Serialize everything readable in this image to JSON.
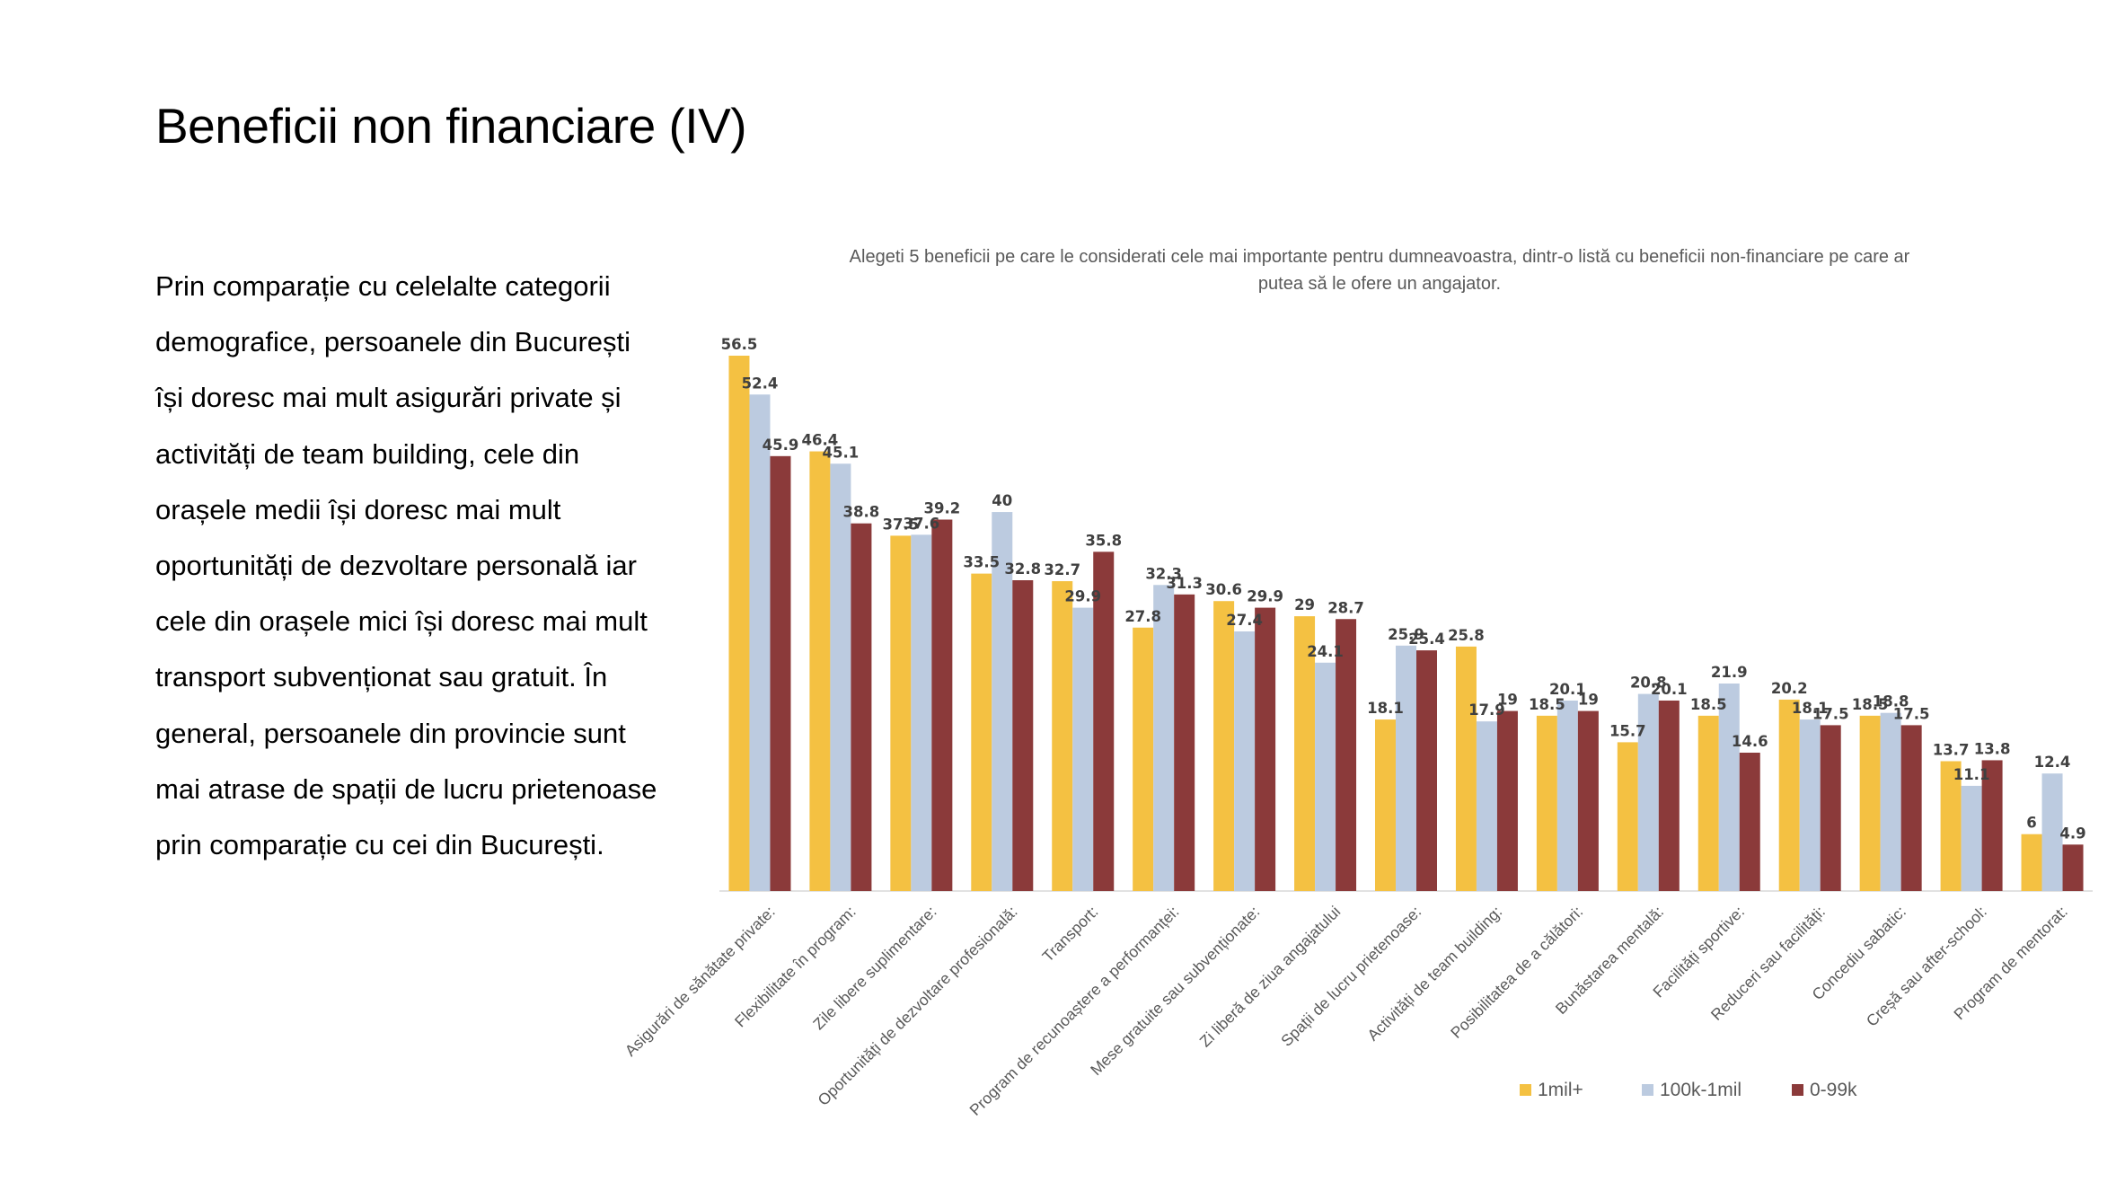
{
  "slide": {
    "title": "Beneficii non financiare (IV)",
    "body_text": "Prin comparație cu celelalte categorii demografice, persoanele din București își doresc mai mult asigurări private și activități de team building, cele din orașele medii își doresc mai mult oportunități de dezvoltare personală iar cele din orașele mici își doresc mai mult transport subvenționat sau gratuit. În general, persoanele din provincie sunt mai atrase de spații de lucru prietenoase prin comparație cu cei din București."
  },
  "chart_data": {
    "type": "bar",
    "title_lines": [
      "Alegeti 5 beneficii pe care le considerati cele mai importante pentru dumneavoastra, dintr-o listă cu beneficii non-financiare pe care ar",
      "putea să le ofere un angajator."
    ],
    "categories": [
      "Asigurări de sănătate private:",
      "Flexibilitate în program:",
      "Zile libere suplimentare:",
      "Oportunități de dezvoltare profesională:",
      "Transport:",
      "Program de recunoaștere a performanței:",
      "Mese gratuite sau subvenționate:",
      "Zi liberă de ziua angajatului",
      "Spații de lucru prietenoase:",
      "Activități de team building:",
      "Posibilitatea de a călători:",
      "Bunăstarea mentală:",
      "Facilități sportive:",
      "Reduceri sau facilități:",
      "Concediu sabatic:",
      "Creșă sau after-school:",
      "Program de mentorat:"
    ],
    "series": [
      {
        "name": "1mil+",
        "color": "#F4C142",
        "values": [
          56.5,
          46.4,
          37.5,
          33.5,
          32.7,
          27.8,
          30.6,
          29,
          18.1,
          25.8,
          18.5,
          15.7,
          18.5,
          20.2,
          18.5,
          13.7,
          6
        ]
      },
      {
        "name": "100k-1mil",
        "color": "#BCCBE0",
        "values": [
          52.4,
          45.1,
          37.6,
          40,
          29.9,
          32.3,
          27.4,
          24.1,
          25.9,
          17.9,
          20.1,
          20.8,
          21.9,
          18.1,
          18.8,
          11.1,
          12.4
        ]
      },
      {
        "name": "0-99k",
        "color": "#8B3A3A",
        "values": [
          45.9,
          38.8,
          39.2,
          32.8,
          35.8,
          31.3,
          29.9,
          28.7,
          25.4,
          19,
          19,
          20.1,
          14.6,
          17.5,
          17.5,
          13.8,
          4.9
        ]
      }
    ],
    "ylim": [
      0,
      60
    ],
    "grid": false,
    "legend_position": "bottom-right"
  }
}
